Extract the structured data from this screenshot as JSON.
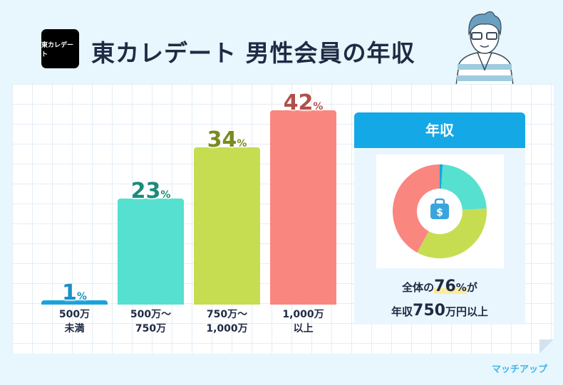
{
  "header": {
    "logo_text": "東カレデート",
    "title": "東カレデート 男性会員の年収"
  },
  "chart_data": {
    "type": "bar",
    "title": "東カレデート 男性会員の年収",
    "categories": [
      [
        "500万",
        "未満"
      ],
      [
        "500万～",
        "750万"
      ],
      [
        "750万～",
        "1,000万"
      ],
      [
        "1,000万",
        "以上"
      ]
    ],
    "values": [
      1,
      23,
      34,
      42
    ],
    "unit": "%",
    "colors": [
      "#1aa3db",
      "#55e0cf",
      "#c7dd51",
      "#fa8680"
    ],
    "label_colors": [
      "#1a8fc5",
      "#1e8a7a",
      "#7a8a1c",
      "#b0504a"
    ],
    "ylim": [
      0,
      42
    ]
  },
  "panel": {
    "title": "年収",
    "summary_pre": "全体の",
    "summary_pct": "76",
    "summary_pct_unit": "%",
    "summary_post": "が",
    "line2_pre": "年収",
    "line2_num": "750",
    "line2_post": "万円以上",
    "donut": {
      "type": "pie",
      "values": [
        1,
        23,
        34,
        42
      ],
      "colors": [
        "#1aa3db",
        "#55e0cf",
        "#c7dd51",
        "#fa8680"
      ]
    }
  },
  "footer": {
    "brand": "マッチアップ"
  }
}
